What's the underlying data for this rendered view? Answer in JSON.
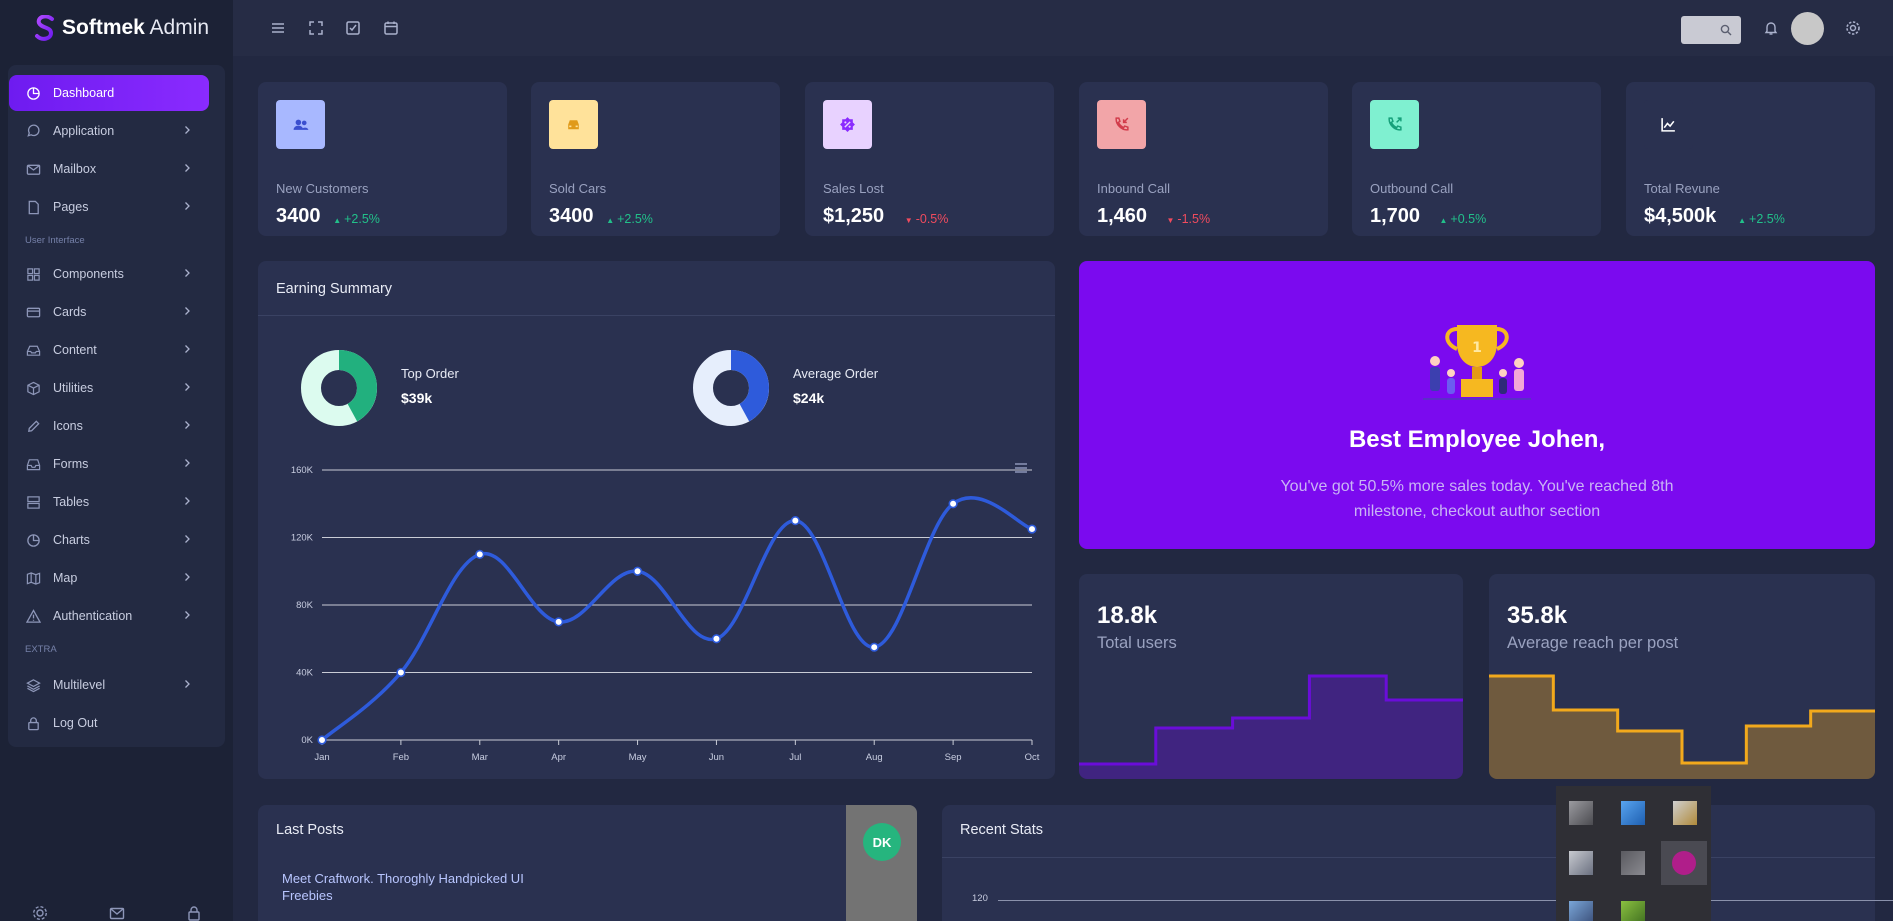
{
  "brand": {
    "bold": "Softmek",
    "light": "Admin"
  },
  "sidebar": {
    "items": [
      {
        "label": "Dashboard",
        "icon": "pie-chart-icon",
        "active": true
      },
      {
        "label": "Application",
        "icon": "chat-icon"
      },
      {
        "label": "Mailbox",
        "icon": "mail-icon"
      },
      {
        "label": "Pages",
        "icon": "file-icon"
      },
      {
        "label": "Components",
        "icon": "grid-icon"
      },
      {
        "label": "Cards",
        "icon": "card-icon"
      },
      {
        "label": "Content",
        "icon": "inbox-icon"
      },
      {
        "label": "Utilities",
        "icon": "box-icon"
      },
      {
        "label": "Icons",
        "icon": "pencil-icon"
      },
      {
        "label": "Forms",
        "icon": "tray-icon"
      },
      {
        "label": "Tables",
        "icon": "server-icon"
      },
      {
        "label": "Charts",
        "icon": "pie-icon"
      },
      {
        "label": "Map",
        "icon": "map-icon"
      },
      {
        "label": "Authentication",
        "icon": "warning-icon"
      },
      {
        "label": "Multilevel",
        "icon": "layers-icon"
      },
      {
        "label": "Log Out",
        "icon": "lock-icon"
      }
    ],
    "sections": {
      "ui": "User Interface",
      "extra": "EXTRA"
    }
  },
  "stats": [
    {
      "label": "New Customers",
      "value": "3400",
      "change": "+2.5%",
      "trend": "up",
      "icon": "users-icon",
      "icon_bg": "#a8b8ff",
      "icon_color": "#3b4fcf"
    },
    {
      "label": "Sold Cars",
      "value": "3400",
      "change": "+2.5%",
      "trend": "up",
      "icon": "car-icon",
      "icon_bg": "#ffe29a",
      "icon_color": "#e09a1a"
    },
    {
      "label": "Sales Lost",
      "value": "$1,250",
      "change": "-0.5%",
      "trend": "down",
      "icon": "discount-icon",
      "icon_bg": "#e8d2ff",
      "icon_color": "#8a2bff"
    },
    {
      "label": "Inbound Call",
      "value": "1,460",
      "change": "-1.5%",
      "trend": "down",
      "icon": "phone-in-icon",
      "icon_bg": "#f2a5a8",
      "icon_color": "#d23c4b"
    },
    {
      "label": "Outbound Call",
      "value": "1,700",
      "change": "+0.5%",
      "trend": "up",
      "icon": "phone-out-icon",
      "icon_bg": "#7ff0d0",
      "icon_color": "#16a07a"
    },
    {
      "label": "Total Revune",
      "value": "$4,500k",
      "change": "+2.5%",
      "trend": "up",
      "icon": "line-chart-icon",
      "icon_bg": "#2a3150",
      "icon_color": "#ffffff"
    }
  ],
  "earning": {
    "title": "Earning Summary",
    "top_order": {
      "label": "Top Order",
      "value": "$39k",
      "fraction": 0.42
    },
    "avg_order": {
      "label": "Average Order",
      "value": "$24k",
      "fraction": 0.42
    }
  },
  "chart_data": {
    "type": "line",
    "categories": [
      "Jan",
      "Feb",
      "Mar",
      "Apr",
      "May",
      "Jun",
      "Jul",
      "Aug",
      "Sep",
      "Oct"
    ],
    "values": [
      0,
      40,
      110,
      70,
      100,
      60,
      130,
      55,
      140,
      125
    ],
    "ylim": [
      0,
      160
    ],
    "yticks": [
      "0K",
      "40K",
      "80K",
      "120K",
      "160K"
    ],
    "color": "#2e5bdb"
  },
  "promo": {
    "title": "Best Employee Johen,",
    "text": "You've got 50.5% more sales today. You've reached 8th milestone, checkout author section"
  },
  "mini": [
    {
      "value": "18.8k",
      "label": "Total users",
      "values": [
        0.12,
        0.48,
        0.58,
        1.0,
        0.76
      ],
      "color": "#6a0dd9"
    },
    {
      "value": "35.8k",
      "label": "Average reach per post",
      "values": [
        1.0,
        0.66,
        0.45,
        0.13,
        0.5,
        0.65
      ],
      "color": "#f2a91c"
    }
  ],
  "last_posts": {
    "title": "Last Posts",
    "avatar": "DK",
    "text": "Meet Craftwork. Thoroghly Handpicked UI Freebies"
  },
  "recent_stats": {
    "title": "Recent Stats",
    "tick": "120"
  }
}
